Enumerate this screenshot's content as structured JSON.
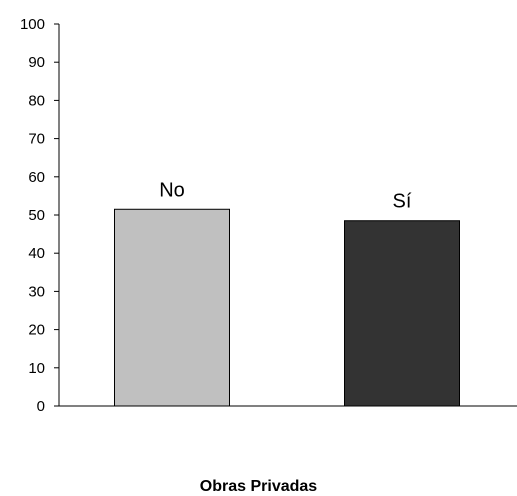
{
  "chart_data": {
    "type": "bar",
    "categories": [
      "No",
      "Sí"
    ],
    "values": [
      51.5,
      48.5
    ],
    "colors": [
      "#c0c0c0",
      "#333333"
    ],
    "xlabel": "Obras Privadas",
    "ylim": [
      0,
      100
    ],
    "yticks": [
      0,
      10,
      20,
      30,
      40,
      50,
      60,
      70,
      80,
      90,
      100
    ],
    "data_labels": [
      "No",
      "Sí"
    ],
    "grid": false,
    "legend": "none"
  }
}
